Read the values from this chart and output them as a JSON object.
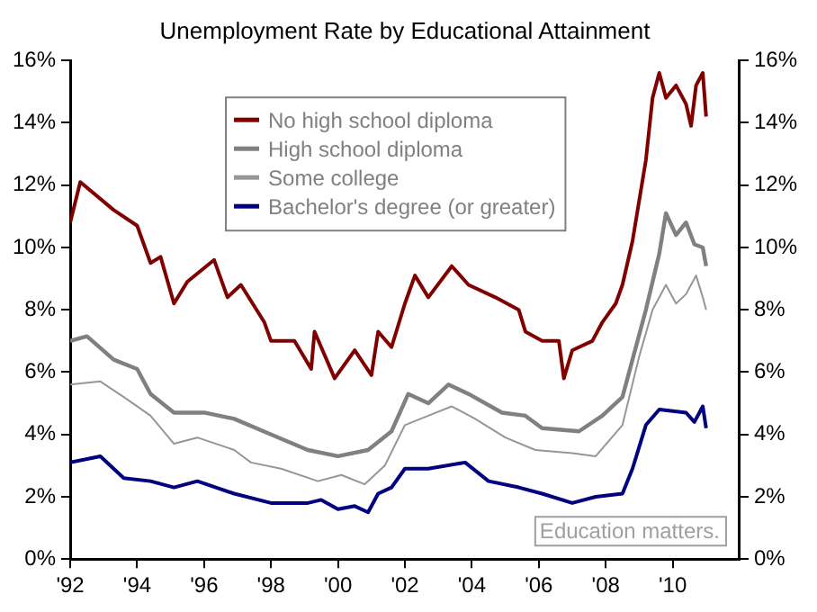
{
  "chart_data": {
    "type": "line",
    "title": "Unemployment Rate by Educational Attainment",
    "xlim": [
      1992,
      2012
    ],
    "xticks": [
      {
        "value": 1992,
        "label": "'92"
      },
      {
        "value": 1994,
        "label": "'94"
      },
      {
        "value": 1996,
        "label": "'96"
      },
      {
        "value": 1998,
        "label": "'98"
      },
      {
        "value": 2000,
        "label": "'00"
      },
      {
        "value": 2002,
        "label": "'02"
      },
      {
        "value": 2004,
        "label": "'04"
      },
      {
        "value": 2006,
        "label": "'06"
      },
      {
        "value": 2008,
        "label": "'08"
      },
      {
        "value": 2010,
        "label": "'10"
      }
    ],
    "ylim": [
      0,
      16
    ],
    "yticks": [
      {
        "value": 0,
        "label": "0%"
      },
      {
        "value": 2,
        "label": "2%"
      },
      {
        "value": 4,
        "label": "4%"
      },
      {
        "value": 6,
        "label": "6%"
      },
      {
        "value": 8,
        "label": "8%"
      },
      {
        "value": 10,
        "label": "10%"
      },
      {
        "value": 12,
        "label": "12%"
      },
      {
        "value": 14,
        "label": "14%"
      },
      {
        "value": 16,
        "label": "16%"
      }
    ],
    "y2lim": [
      0,
      16
    ],
    "y2ticks": [
      {
        "value": 0,
        "label": "0%"
      },
      {
        "value": 2,
        "label": "2%"
      },
      {
        "value": 4,
        "label": "4%"
      },
      {
        "value": 6,
        "label": "6%"
      },
      {
        "value": 8,
        "label": "8%"
      },
      {
        "value": 10,
        "label": "10%"
      },
      {
        "value": 12,
        "label": "12%"
      },
      {
        "value": 14,
        "label": "14%"
      },
      {
        "value": 16,
        "label": "16%"
      }
    ],
    "grid": false,
    "legend": "top left",
    "marker": "none",
    "line_style": "solid",
    "annotations": [
      "Education matters."
    ],
    "series": [
      {
        "name": "No high school diploma",
        "color": "#800000",
        "x": [
          1992,
          1992.3,
          1993.3,
          1994.0,
          1994.4,
          1994.7,
          1995.1,
          1995.5,
          1996.3,
          1996.7,
          1997.1,
          1997.8,
          1998.0,
          1998.7,
          1999.2,
          1999.3,
          1999.9,
          2000.5,
          2001.0,
          2001.2,
          2001.6,
          2002.0,
          2002.3,
          2002.7,
          2003.4,
          2003.9,
          2004.7,
          2005.4,
          2005.6,
          2006.1,
          2006.6,
          2006.75,
          2007.0,
          2007.6,
          2007.9,
          2008.3,
          2008.5,
          2008.8,
          2009.2,
          2009.4,
          2009.6,
          2009.8,
          2010.1,
          2010.4,
          2010.55,
          2010.7,
          2010.9,
          2011.0
        ],
        "values": [
          10.8,
          12.1,
          11.2,
          10.7,
          9.5,
          9.7,
          8.2,
          8.9,
          9.6,
          8.4,
          8.8,
          7.6,
          7.0,
          7.0,
          6.1,
          7.3,
          5.8,
          6.7,
          5.9,
          7.3,
          6.8,
          8.2,
          9.1,
          8.4,
          9.4,
          8.8,
          8.4,
          8.0,
          7.3,
          7.0,
          7.0,
          5.8,
          6.7,
          7.0,
          7.6,
          8.2,
          8.8,
          10.2,
          12.8,
          14.8,
          15.6,
          14.8,
          15.2,
          14.6,
          13.9,
          15.2,
          15.6,
          14.2
        ]
      },
      {
        "name": "High school diploma",
        "color": "#808080",
        "x": [
          1992,
          1992.5,
          1993.3,
          1994.0,
          1994.4,
          1995.1,
          1996.0,
          1996.9,
          1998.0,
          1999.1,
          2000.0,
          2000.9,
          2001.6,
          2002.1,
          2002.7,
          2003.3,
          2003.9,
          2004.9,
          2005.6,
          2006.1,
          2007.2,
          2007.9,
          2008.5,
          2008.8,
          2009.2,
          2009.6,
          2009.8,
          2010.1,
          2010.4,
          2010.65,
          2010.9,
          2011.0
        ],
        "values": [
          7.0,
          7.15,
          6.4,
          6.1,
          5.3,
          4.7,
          4.7,
          4.5,
          4.0,
          3.5,
          3.3,
          3.5,
          4.1,
          5.3,
          5.0,
          5.6,
          5.3,
          4.7,
          4.6,
          4.2,
          4.1,
          4.6,
          5.2,
          6.4,
          8.0,
          9.8,
          11.1,
          10.4,
          10.8,
          10.1,
          10.0,
          9.4
        ]
      },
      {
        "name": "Some college",
        "color": "#969696",
        "x": [
          1992,
          1992.9,
          1993.6,
          1994.4,
          1995.1,
          1995.8,
          1996.9,
          1997.4,
          1998.3,
          1999.4,
          2000.1,
          2000.8,
          2001.4,
          2002.0,
          2002.7,
          2003.4,
          2004.1,
          2005.0,
          2005.9,
          2007.0,
          2007.7,
          2008.5,
          2009.0,
          2009.4,
          2009.8,
          2010.1,
          2010.4,
          2010.7,
          2010.9,
          2011.0
        ],
        "values": [
          5.6,
          5.7,
          5.2,
          4.6,
          3.7,
          3.9,
          3.5,
          3.1,
          2.9,
          2.5,
          2.7,
          2.4,
          3.0,
          4.3,
          4.6,
          4.9,
          4.5,
          3.9,
          3.5,
          3.4,
          3.3,
          4.3,
          6.5,
          8.0,
          8.8,
          8.2,
          8.5,
          9.1,
          8.4,
          8.0
        ]
      },
      {
        "name": "Bachelor's degree (or greater)",
        "color": "#000080",
        "x": [
          1992,
          1992.9,
          1993.6,
          1994.4,
          1995.1,
          1995.8,
          1996.9,
          1998.0,
          1999.1,
          1999.5,
          2000.0,
          2000.5,
          2000.9,
          2001.2,
          2001.6,
          2002.0,
          2002.7,
          2003.8,
          2004.5,
          2005.4,
          2006.1,
          2007.0,
          2007.7,
          2008.5,
          2008.8,
          2009.2,
          2009.6,
          2010.4,
          2010.65,
          2010.9,
          2011.0
        ],
        "values": [
          3.1,
          3.3,
          2.6,
          2.5,
          2.3,
          2.5,
          2.1,
          1.8,
          1.8,
          1.9,
          1.6,
          1.7,
          1.5,
          2.1,
          2.3,
          2.9,
          2.9,
          3.1,
          2.5,
          2.3,
          2.1,
          1.8,
          2.0,
          2.1,
          2.9,
          4.3,
          4.8,
          4.7,
          4.4,
          4.9,
          4.2
        ]
      }
    ]
  }
}
